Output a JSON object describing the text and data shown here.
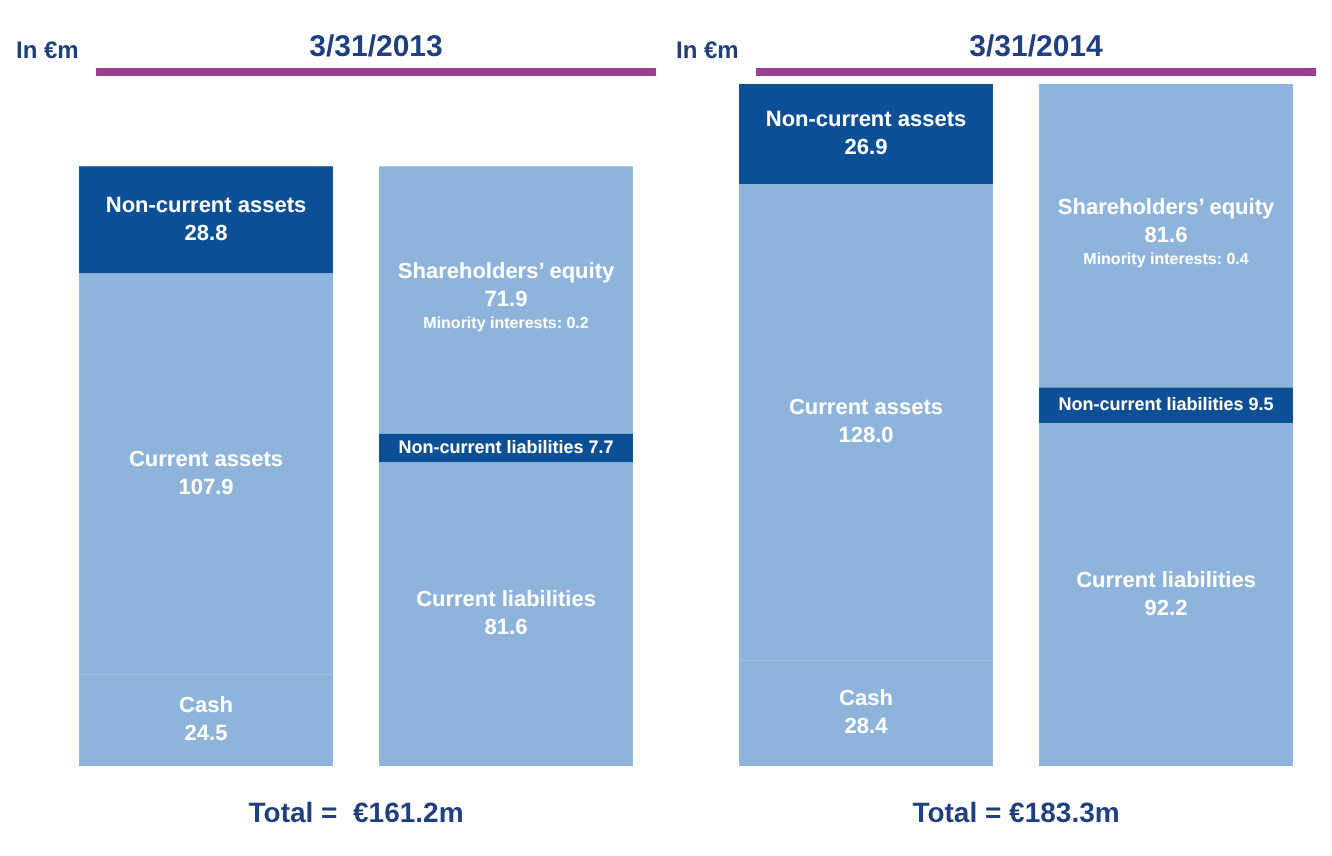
{
  "chart_data": [
    {
      "type": "bar",
      "title": "3/31/2013",
      "ylabel": "In €m",
      "categories": [
        null,
        null
      ],
      "stacked": true,
      "series": [
        {
          "colors": [
            "#8eb4dc",
            "#8eb4dc"
          ],
          "values": [
            24.5,
            81.6
          ],
          "value_labels": [
            "Cash 24.5",
            "Current liabilities 81.6"
          ]
        },
        {
          "colors": [
            "#8eb4dc",
            "#0b4f96"
          ],
          "values": [
            107.9,
            7.7
          ],
          "value_labels": [
            "Current assets 107.9",
            "Non-current liabilities 7.7"
          ]
        },
        {
          "colors": [
            "#0b4f96",
            "#8eb4dc"
          ],
          "values": [
            28.8,
            71.9
          ],
          "value_labels": [
            "Non-current assets 28.8",
            "Shareholders’ equity 71.9"
          ]
        }
      ],
      "annotations": [
        "Minority interests: 0.2",
        "Total =  €161.2m"
      ]
    },
    {
      "type": "bar",
      "title": "3/31/2014",
      "ylabel": "In €m",
      "categories": [
        null,
        null
      ],
      "stacked": true,
      "series": [
        {
          "colors": [
            "#8eb4dc",
            "#8eb4dc"
          ],
          "values": [
            28.4,
            92.2
          ],
          "value_labels": [
            "Cash 28.4",
            "Current liabilities 92.2"
          ]
        },
        {
          "colors": [
            "#8eb4dc",
            "#0b4f96"
          ],
          "values": [
            128.0,
            9.5
          ],
          "value_labels": [
            "Current assets 128.0",
            "Non-current liabilities 9.5"
          ]
        },
        {
          "colors": [
            "#0b4f96",
            "#8eb4dc"
          ],
          "values": [
            26.9,
            81.6
          ],
          "value_labels": [
            "Non-current assets 26.9",
            "Shareholders’ equity 81.6"
          ]
        }
      ],
      "annotations": [
        "Minority interests: 0.4",
        "Total = €183.3m"
      ]
    }
  ]
}
